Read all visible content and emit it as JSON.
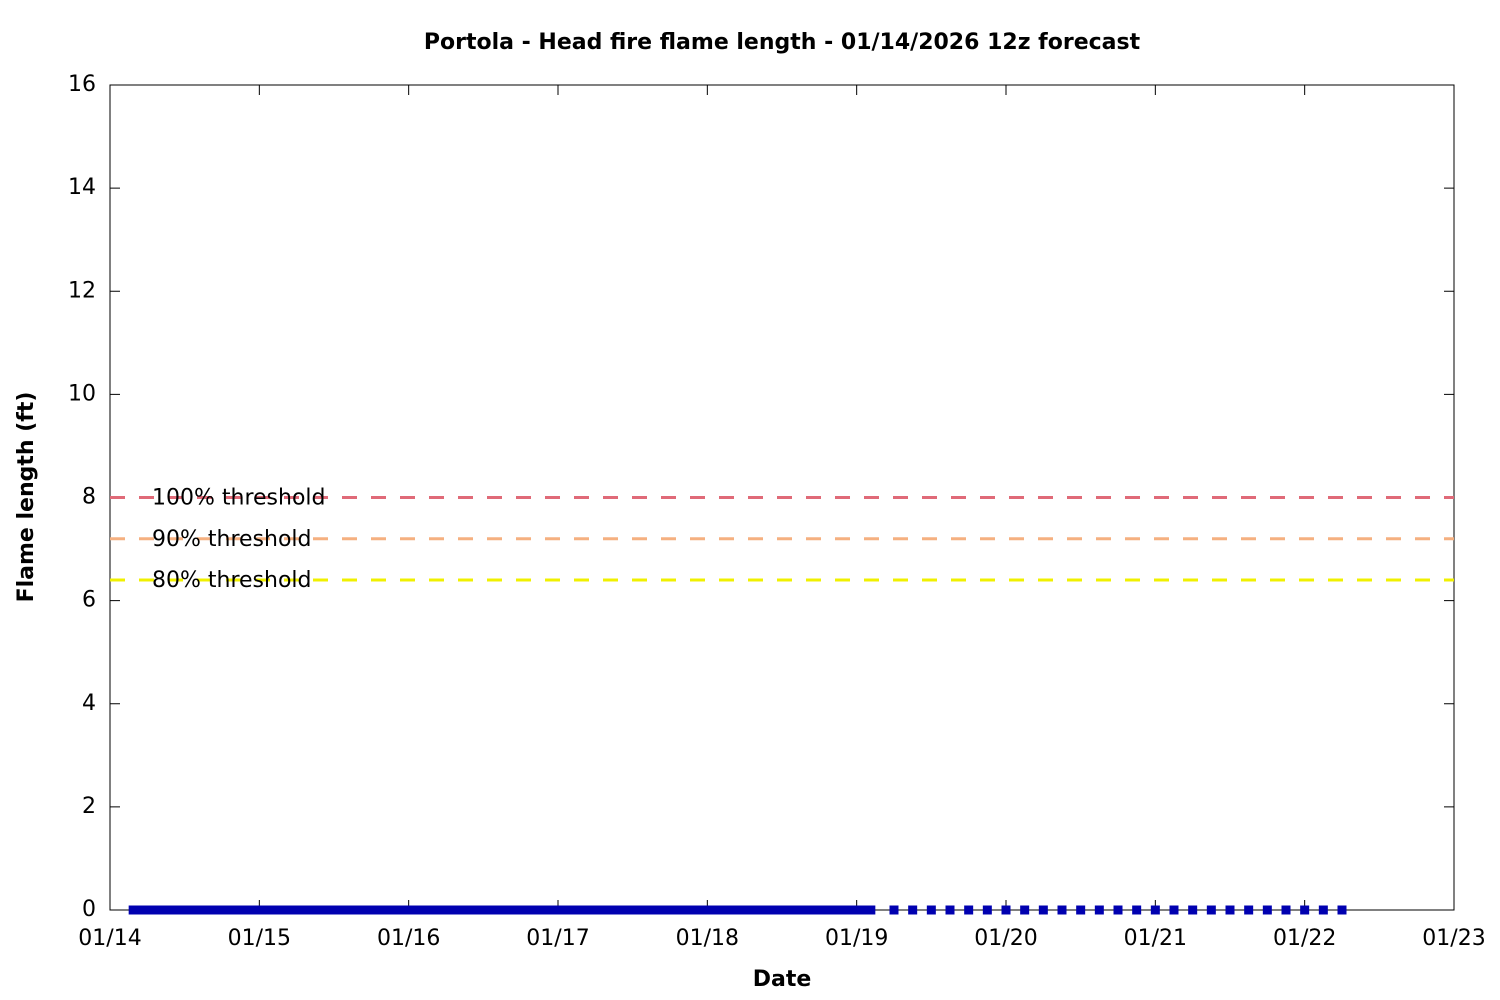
{
  "chart_data": {
    "type": "line",
    "title": "Portola - Head fire flame length - 01/14/2026 12z forecast",
    "xlabel": "Date",
    "ylabel": "Flame length (ft)",
    "xlim": [
      0,
      9
    ],
    "xticks": [
      {
        "value": 0,
        "label": "01/14"
      },
      {
        "value": 1,
        "label": "01/15"
      },
      {
        "value": 2,
        "label": "01/16"
      },
      {
        "value": 3,
        "label": "01/17"
      },
      {
        "value": 4,
        "label": "01/18"
      },
      {
        "value": 5,
        "label": "01/19"
      },
      {
        "value": 6,
        "label": "01/20"
      },
      {
        "value": 7,
        "label": "01/21"
      },
      {
        "value": 8,
        "label": "01/22"
      },
      {
        "value": 9,
        "label": "01/23"
      }
    ],
    "ylim": [
      0,
      16
    ],
    "yticks": [
      0,
      2,
      4,
      6,
      8,
      10,
      12,
      14,
      16
    ],
    "thresholds": [
      {
        "label": "100% threshold",
        "value": 8,
        "color": "#e06a78"
      },
      {
        "label": "90% threshold",
        "value": 7.2,
        "color": "#f5b080"
      },
      {
        "label": "80% threshold",
        "value": 6.4,
        "color": "#f0f000"
      }
    ],
    "series": [
      {
        "style": "line",
        "color": "#0000b0",
        "x": [
          0.125,
          0.25,
          0.375,
          0.5,
          0.625,
          0.75,
          0.875,
          1,
          1.125,
          1.25,
          1.375,
          1.5,
          1.625,
          1.75,
          1.875,
          2,
          2.125,
          2.25,
          2.375,
          2.5,
          2.625,
          2.75,
          2.875,
          3,
          3.125,
          3.25,
          3.375,
          3.5,
          3.625,
          3.75,
          3.875,
          4,
          4.125,
          4.25,
          4.375,
          4.5,
          4.625,
          4.75,
          4.875,
          5,
          5.125
        ],
        "values": [
          0,
          0,
          0,
          0,
          0,
          0,
          0,
          0,
          0,
          0,
          0,
          0,
          0,
          0,
          0,
          0,
          0,
          0,
          0,
          0,
          0,
          0,
          0,
          0,
          0,
          0,
          0,
          0,
          0,
          0,
          0,
          0,
          0,
          0,
          0,
          0,
          0,
          0,
          0,
          0,
          0
        ]
      },
      {
        "style": "points",
        "color": "#0000b0",
        "x": [
          5.25,
          5.375,
          5.5,
          5.625,
          5.75,
          5.875,
          6,
          6.125,
          6.25,
          6.375,
          6.5,
          6.625,
          6.75,
          6.875,
          7,
          7.125,
          7.25,
          7.375,
          7.5,
          7.625,
          7.75,
          7.875,
          8,
          8.125,
          8.25
        ],
        "values": [
          0,
          0,
          0,
          0,
          0,
          0,
          0,
          0,
          0,
          0,
          0,
          0,
          0,
          0,
          0,
          0,
          0,
          0,
          0,
          0,
          0,
          0,
          0,
          0,
          0
        ]
      }
    ]
  }
}
